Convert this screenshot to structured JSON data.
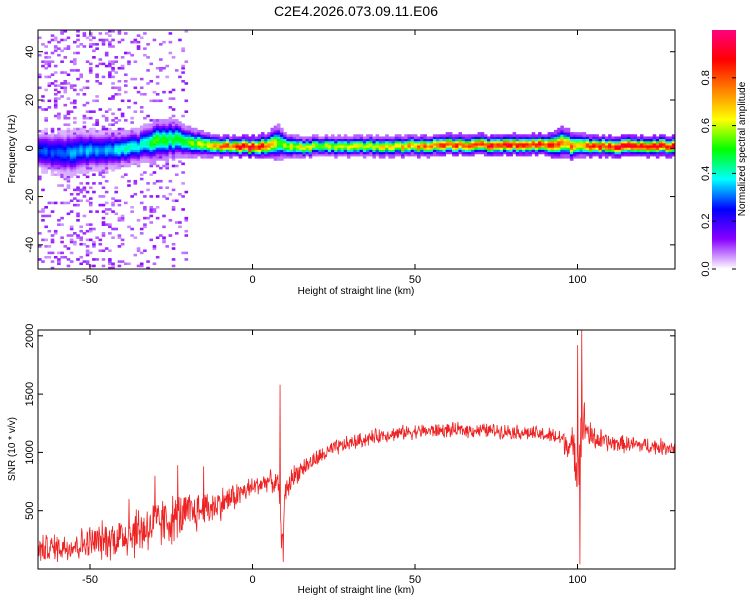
{
  "title": "C2E4.2026.073.09.11.E06",
  "chart_data": [
    {
      "type": "heatmap",
      "xlabel": "Height of straight line (km)",
      "ylabel": "Frequency (Hz)",
      "xlim": [
        -66,
        130
      ],
      "ylim": [
        -50,
        49
      ],
      "xticks": [
        -50,
        0,
        50,
        100
      ],
      "yticks": [
        -40,
        -20,
        0,
        20,
        40
      ],
      "colorbar": {
        "label": "Normalized spectral amplitude",
        "range": [
          0,
          1
        ],
        "ticks": [
          "0.0",
          "0.2",
          "0.4",
          "0.6",
          "0.8"
        ],
        "colors": [
          "#ffffff",
          "#8800ff",
          "#0000ff",
          "#00ffff",
          "#00ff00",
          "#ffff00",
          "#ff8000",
          "#ff0000",
          "#ff0080"
        ]
      },
      "ridge": {
        "x": [
          -66,
          -60,
          -55,
          -50,
          -45,
          -40,
          -35,
          -30,
          -25,
          -20,
          -15,
          -10,
          -5,
          0,
          5,
          8,
          10,
          15,
          20,
          30,
          40,
          50,
          60,
          70,
          80,
          90,
          95,
          100,
          105,
          110,
          120,
          130
        ],
        "freq": [
          -1,
          -2,
          -1.5,
          -1,
          -1,
          0,
          1,
          3,
          4,
          3,
          2,
          1,
          1,
          0.5,
          1,
          2,
          1,
          0.5,
          1,
          1,
          1,
          1,
          1.5,
          1.5,
          1.5,
          1.5,
          2,
          1,
          1,
          1,
          1,
          1
        ],
        "amplitude": [
          0.3,
          0.3,
          0.35,
          0.35,
          0.35,
          0.4,
          0.4,
          0.5,
          0.5,
          0.55,
          0.6,
          0.75,
          0.85,
          0.95,
          0.75,
          0.6,
          0.6,
          0.65,
          0.6,
          0.6,
          0.65,
          0.75,
          0.85,
          0.9,
          0.9,
          0.85,
          0.8,
          0.75,
          0.85,
          0.9,
          0.9,
          0.9
        ],
        "halfwidth_hz": [
          4,
          4.5,
          4.5,
          4,
          4,
          3.5,
          3.5,
          4,
          4,
          3,
          2.5,
          2,
          2,
          2,
          2.5,
          3.5,
          2.5,
          2,
          2,
          2,
          2,
          2,
          2,
          2,
          2,
          2,
          3,
          2.5,
          2,
          2,
          2,
          2
        ]
      }
    },
    {
      "type": "line",
      "xlabel": "Height of straight line (km)",
      "ylabel": "SNR (10 * v/v)",
      "xlim": [
        -66,
        130
      ],
      "ylim": [
        0,
        2050
      ],
      "xticks": [
        -50,
        0,
        50,
        100
      ],
      "yticks": [
        500,
        1000,
        1500,
        2000
      ],
      "color": "#ee2222",
      "envelope": {
        "x": [
          -66,
          -55,
          -45,
          -40,
          -35,
          -30,
          -25,
          -20,
          -15,
          -10,
          -5,
          0,
          5,
          8,
          9,
          10,
          12,
          15,
          20,
          25,
          30,
          40,
          50,
          60,
          70,
          80,
          90,
          95,
          98,
          100,
          101,
          102,
          104,
          110,
          120,
          130
        ],
        "mean": [
          170,
          200,
          250,
          280,
          330,
          380,
          420,
          470,
          510,
          560,
          630,
          700,
          760,
          720,
          200,
          620,
          780,
          860,
          950,
          1030,
          1080,
          1150,
          1180,
          1190,
          1190,
          1180,
          1150,
          1120,
          1050,
          900,
          1150,
          1250,
          1130,
          1080,
          1060,
          1040
        ],
        "noise": [
          140,
          160,
          200,
          230,
          280,
          270,
          250,
          230,
          200,
          170,
          140,
          110,
          100,
          120,
          80,
          150,
          120,
          100,
          90,
          85,
          80,
          75,
          75,
          75,
          75,
          75,
          80,
          100,
          200,
          300,
          300,
          250,
          150,
          90,
          85,
          85
        ]
      },
      "spikes": [
        {
          "x": -38,
          "y": 600
        },
        {
          "x": -30,
          "y": 800
        },
        {
          "x": -23,
          "y": 890
        },
        {
          "x": -15,
          "y": 880
        },
        {
          "x": 8.5,
          "y": 1580
        },
        {
          "x": 9.5,
          "y": 60
        },
        {
          "x": 100,
          "y": 1920
        },
        {
          "x": 100.7,
          "y": 40
        },
        {
          "x": 101.3,
          "y": 2050
        }
      ]
    }
  ]
}
